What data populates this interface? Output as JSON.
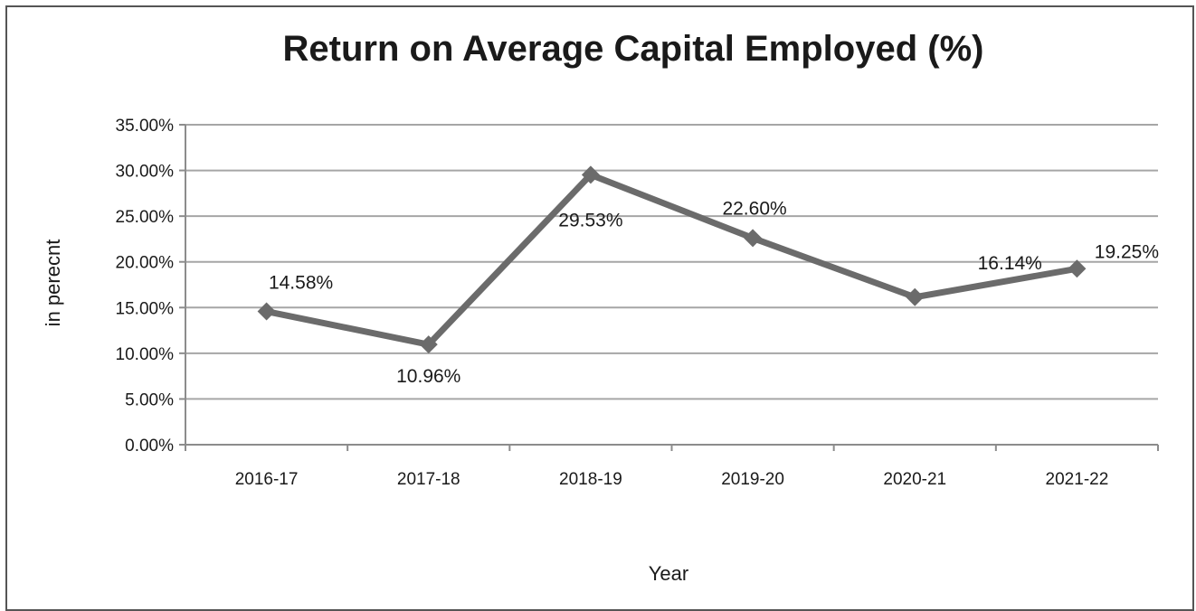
{
  "chart_data": {
    "type": "line",
    "title": "Return on Average Capital Employed (%)",
    "xlabel": "Year",
    "ylabel": "in perecnt",
    "categories": [
      "2016-17",
      "2017-18",
      "2018-19",
      "2019-20",
      "2020-21",
      "2021-22"
    ],
    "series": [
      {
        "values": [
          14.58,
          10.96,
          29.53,
          22.6,
          16.14,
          19.25
        ],
        "data_labels": [
          "14.58%",
          "10.96%",
          "29.53%",
          "22.60%",
          "16.14%",
          "19.25%"
        ]
      }
    ],
    "ylim": [
      0,
      35
    ],
    "y_ticks": [
      "0.00%",
      "5.00%",
      "10.00%",
      "15.00%",
      "20.00%",
      "25.00%",
      "30.00%",
      "35.00%"
    ],
    "grid": true,
    "legend": "none",
    "line_color": "#6b6b6b",
    "marker": "diamond"
  }
}
